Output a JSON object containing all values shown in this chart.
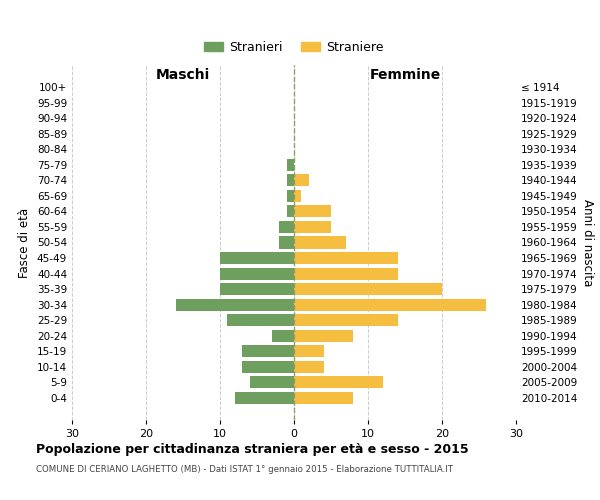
{
  "age_groups": [
    "100+",
    "95-99",
    "90-94",
    "85-89",
    "80-84",
    "75-79",
    "70-74",
    "65-69",
    "60-64",
    "55-59",
    "50-54",
    "45-49",
    "40-44",
    "35-39",
    "30-34",
    "25-29",
    "20-24",
    "15-19",
    "10-14",
    "5-9",
    "0-4"
  ],
  "birth_years": [
    "≤ 1914",
    "1915-1919",
    "1920-1924",
    "1925-1929",
    "1930-1934",
    "1935-1939",
    "1940-1944",
    "1945-1949",
    "1950-1954",
    "1955-1959",
    "1960-1964",
    "1965-1969",
    "1970-1974",
    "1975-1979",
    "1980-1984",
    "1985-1989",
    "1990-1994",
    "1995-1999",
    "2000-2004",
    "2005-2009",
    "2010-2014"
  ],
  "maschi": [
    0,
    0,
    0,
    0,
    0,
    1,
    1,
    1,
    1,
    2,
    2,
    10,
    10,
    10,
    16,
    9,
    3,
    7,
    7,
    6,
    8
  ],
  "femmine": [
    0,
    0,
    0,
    0,
    0,
    0,
    2,
    1,
    5,
    5,
    7,
    14,
    14,
    20,
    26,
    14,
    8,
    4,
    4,
    12,
    8
  ],
  "color_maschi": "#6e9f5e",
  "color_femmine": "#f5be40",
  "title": "Popolazione per cittadinanza straniera per età e sesso - 2015",
  "subtitle": "COMUNE DI CERIANO LAGHETTO (MB) - Dati ISTAT 1° gennaio 2015 - Elaborazione TUTTITALIA.IT",
  "label_maschi": "Stranieri",
  "label_femmine": "Straniere",
  "xlabel_left": "Maschi",
  "xlabel_right": "Femmine",
  "ylabel_left": "Fasce di età",
  "ylabel_right": "Anni di nascita",
  "xlim": 30,
  "background_color": "#ffffff",
  "grid_color": "#cccccc"
}
